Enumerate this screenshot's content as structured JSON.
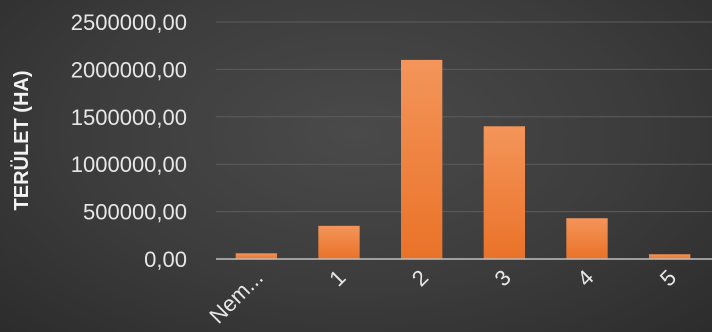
{
  "chart_data": {
    "type": "bar",
    "title": "",
    "xlabel": "",
    "ylabel": "TERÜLET (HA)",
    "categories": [
      "Nem...",
      "1",
      "2",
      "3",
      "4",
      "5"
    ],
    "values": [
      60000,
      350000,
      2100000,
      1400000,
      430000,
      50000
    ],
    "ylim": [
      0,
      2500000
    ],
    "yticks": [
      {
        "value": 0,
        "label": "0,00"
      },
      {
        "value": 500000,
        "label": "500000,00"
      },
      {
        "value": 1000000,
        "label": "1000000,00"
      },
      {
        "value": 1500000,
        "label": "1500000,00"
      },
      {
        "value": 2000000,
        "label": "2000000,00"
      },
      {
        "value": 2500000,
        "label": "2500000,00"
      }
    ],
    "grid": true,
    "legend": "none",
    "colors": {
      "bar_top": "#f4955a",
      "bar_bottom": "#ea7228",
      "background": "#3c3c3c",
      "gridline": "#5c5c5c",
      "text": "#e6e6e6"
    }
  }
}
